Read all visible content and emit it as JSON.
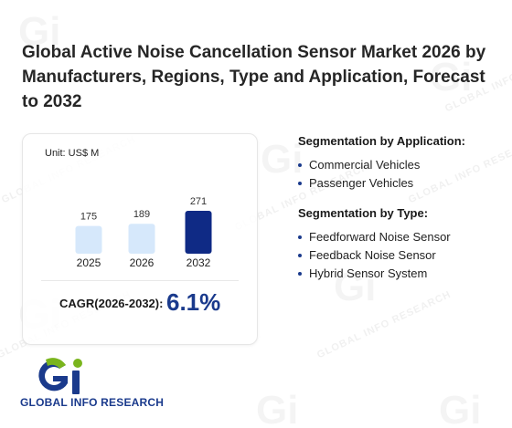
{
  "title": "Global Active Noise Cancellation Sensor Market 2026 by Manufacturers, Regions, Type and Application, Forecast to 2032",
  "watermark_text": "GLOBAL INFO RESEARCH",
  "chart_data": {
    "type": "bar",
    "unit_label": "Unit: US$ M",
    "categories": [
      "2025",
      "2026",
      "2032"
    ],
    "values": [
      175,
      189,
      271
    ],
    "value_labels": [
      "175",
      "189",
      "271"
    ],
    "bar_colors": [
      "#d6e8fb",
      "#d6e8fb",
      "#0f2a85"
    ],
    "ylim": [
      0,
      271
    ]
  },
  "cagr": {
    "label": "CAGR(2026-2032):",
    "value": "6.1%"
  },
  "segmentation_application": {
    "title": "Segmentation by Application:",
    "items": [
      "Commercial Vehicles",
      "Passenger Vehicles"
    ]
  },
  "segmentation_type": {
    "title": "Segmentation by Type:",
    "items": [
      "Feedforward Noise Sensor",
      "Feedback Noise Sensor",
      "Hybrid Sensor System"
    ]
  },
  "logo": {
    "text": "GLOBAL INFO RESEARCH",
    "colors": {
      "green": "#7ab51d",
      "blue": "#1a3a8c"
    }
  }
}
